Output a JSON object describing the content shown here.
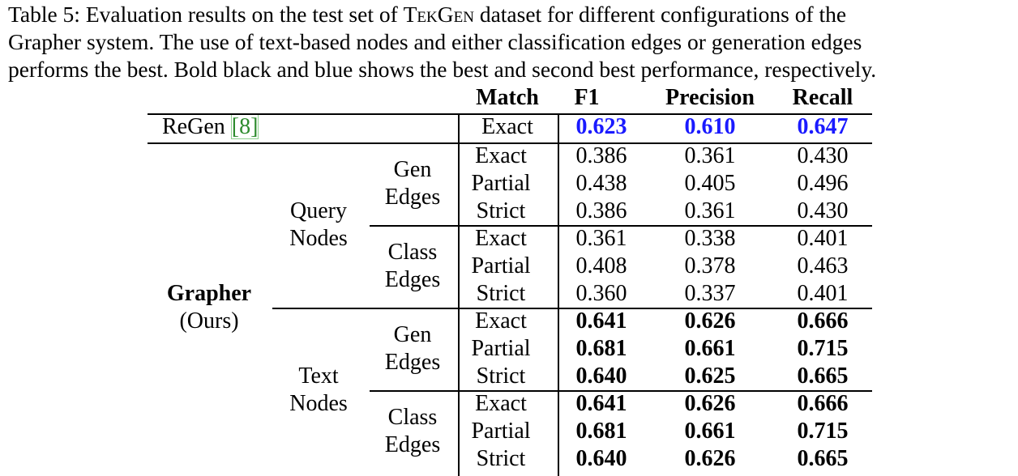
{
  "caption": {
    "line1_pre": "Table 5: Evaluation results on the test set of ",
    "dataset_sc": "TekGen",
    "line1_post": " dataset for different configurations of the",
    "line2": "Grapher system.  The use of text-based nodes and either classification edges or generation edges",
    "line3": "performs the best. Bold black and blue shows the best and second best performance, respectively."
  },
  "headers": {
    "match": "Match",
    "f1": "F1",
    "precision": "Precision",
    "recall": "Recall"
  },
  "regen": {
    "name": "ReGen ",
    "cite": "[8]",
    "match": "Exact",
    "f1": "0.623",
    "precision": "0.610",
    "recall": "0.647"
  },
  "grapher": {
    "name": "Grapher",
    "note": "(Ours)"
  },
  "node_groups": [
    {
      "line1": "Query",
      "line2": "Nodes"
    },
    {
      "line1": "Text",
      "line2": "Nodes"
    }
  ],
  "edge_groups": [
    {
      "line1": "Gen",
      "line2": "Edges"
    },
    {
      "line1": "Class",
      "line2": "Edges"
    },
    {
      "line1": "Gen",
      "line2": "Edges"
    },
    {
      "line1": "Class",
      "line2": "Edges"
    }
  ],
  "rows": [
    {
      "match": "Exact",
      "f1": "0.386",
      "precision": "0.361",
      "recall": "0.430"
    },
    {
      "match": "Partial",
      "f1": "0.438",
      "precision": "0.405",
      "recall": "0.496"
    },
    {
      "match": "Strict",
      "f1": "0.386",
      "precision": "0.361",
      "recall": "0.430"
    },
    {
      "match": "Exact",
      "f1": "0.361",
      "precision": "0.338",
      "recall": "0.401"
    },
    {
      "match": "Partial",
      "f1": "0.408",
      "precision": "0.378",
      "recall": "0.463"
    },
    {
      "match": "Strict",
      "f1": "0.360",
      "precision": "0.337",
      "recall": "0.401"
    },
    {
      "match": "Exact",
      "f1": "0.641",
      "precision": "0.626",
      "recall": "0.666"
    },
    {
      "match": "Partial",
      "f1": "0.681",
      "precision": "0.661",
      "recall": "0.715"
    },
    {
      "match": "Strict",
      "f1": "0.640",
      "precision": "0.625",
      "recall": "0.665"
    },
    {
      "match": "Exact",
      "f1": "0.641",
      "precision": "0.626",
      "recall": "0.666"
    },
    {
      "match": "Partial",
      "f1": "0.681",
      "precision": "0.661",
      "recall": "0.715"
    },
    {
      "match": "Strict",
      "f1": "0.640",
      "precision": "0.626",
      "recall": "0.665"
    }
  ]
}
